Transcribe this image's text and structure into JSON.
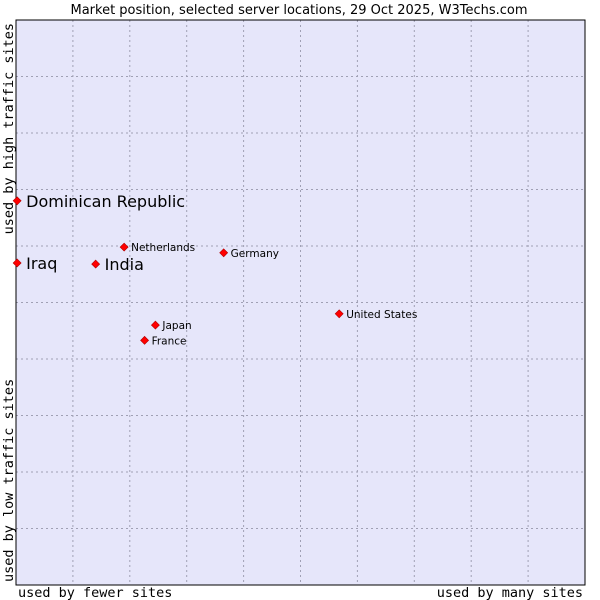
{
  "chart_data": {
    "type": "scatter",
    "title": "Market position, selected server locations, 29 Oct 2025, W3Techs.com",
    "xlabel_low": "used by fewer sites",
    "xlabel_high": "used by many sites",
    "ylabel_low": "used by low traffic sites",
    "ylabel_high": "used by high traffic sites",
    "xlim": [
      0,
      100
    ],
    "ylim": [
      0,
      100
    ],
    "grid": true,
    "colors": {
      "plot_background": "#e6e6fa",
      "grid": "#a0a0b4",
      "border": "#000000",
      "marker": "#ff0000"
    },
    "points": [
      {
        "label": "Dominican Republic",
        "x": 0.2,
        "y": 68.0,
        "emphasis": true
      },
      {
        "label": "Iraq",
        "x": 0.2,
        "y": 57.0,
        "emphasis": true
      },
      {
        "label": "India",
        "x": 14.0,
        "y": 56.8,
        "emphasis": true
      },
      {
        "label": "Netherlands",
        "x": 19.0,
        "y": 59.8,
        "emphasis": false
      },
      {
        "label": "Germany",
        "x": 36.5,
        "y": 58.8,
        "emphasis": false
      },
      {
        "label": "United States",
        "x": 56.8,
        "y": 48.0,
        "emphasis": false
      },
      {
        "label": "Japan",
        "x": 24.5,
        "y": 46.0,
        "emphasis": false
      },
      {
        "label": "France",
        "x": 22.6,
        "y": 43.3,
        "emphasis": false
      }
    ]
  }
}
